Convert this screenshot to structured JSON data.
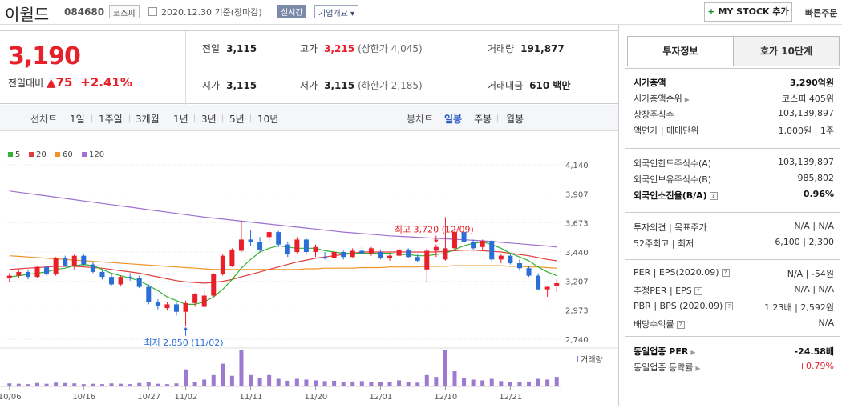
{
  "header": {
    "name": "이월드",
    "code": "084680",
    "market": "코스피",
    "date_text": "2020.12.30 기준(장마감)",
    "realtime": "실시간",
    "overview": "기업개요",
    "mystock": "MY STOCK 추가",
    "quickorder": "빠른주문"
  },
  "price": {
    "current": "3,190",
    "change_label": "전일대비",
    "change_amount": "75",
    "change_percent": "+2.41%",
    "prev_close_label": "전일",
    "prev_close": "3,115",
    "open_label": "시가",
    "open": "3,115",
    "high_label": "고가",
    "high": "3,215",
    "upper_limit": "(상한가 4,045)",
    "low_label": "저가",
    "low": "3,115",
    "lower_limit": "(하한가 2,185)",
    "volume_label": "거래량",
    "volume": "191,877",
    "amount_label": "거래대금",
    "amount": "610 백만"
  },
  "period_bar": {
    "line_label": "선차트",
    "periods": [
      "1일",
      "1주일",
      "3개월",
      "1년",
      "3년",
      "5년",
      "10년"
    ],
    "candle_label": "봉차트",
    "candle_periods": [
      "일봉",
      "주봉",
      "월봉"
    ],
    "active_candle": "일봉"
  },
  "chart_data": {
    "type": "candlestick",
    "ma_legend": [
      {
        "name": "5",
        "color": "#2fb52f"
      },
      {
        "name": "20",
        "color": "#e03c3c"
      },
      {
        "name": "60",
        "color": "#f0942a"
      },
      {
        "name": "120",
        "color": "#a070d0"
      }
    ],
    "y_ticks": [
      "4,140",
      "3,907",
      "3,673",
      "3,440",
      "3,207",
      "2,973",
      "2,740"
    ],
    "ylim": [
      2740,
      4140
    ],
    "x_labels": [
      "10/06",
      "10/16",
      "10/27",
      "11/02",
      "11/11",
      "11/20",
      "12/01",
      "12/10",
      "12/21"
    ],
    "x_label_index": [
      0,
      8,
      15,
      19,
      26,
      33,
      40,
      47,
      54
    ],
    "high_annotation": "최고 3,720 (12/09)",
    "low_annotation": "최저 2,850 (11/02)",
    "high_index": 46,
    "low_index": 19,
    "volume_label": "거래량",
    "candles": [
      [
        3230,
        3270,
        3200,
        3250
      ],
      [
        3250,
        3300,
        3230,
        3280
      ],
      [
        3280,
        3300,
        3220,
        3240
      ],
      [
        3240,
        3330,
        3230,
        3320
      ],
      [
        3320,
        3330,
        3250,
        3260
      ],
      [
        3260,
        3400,
        3250,
        3390
      ],
      [
        3390,
        3410,
        3320,
        3330
      ],
      [
        3330,
        3420,
        3300,
        3410
      ],
      [
        3410,
        3420,
        3330,
        3340
      ],
      [
        3340,
        3360,
        3270,
        3280
      ],
      [
        3280,
        3300,
        3220,
        3240
      ],
      [
        3240,
        3260,
        3170,
        3180
      ],
      [
        3180,
        3250,
        3170,
        3240
      ],
      [
        3240,
        3270,
        3210,
        3230
      ],
      [
        3230,
        3250,
        3150,
        3160
      ],
      [
        3160,
        3180,
        3020,
        3040
      ],
      [
        3040,
        3060,
        2980,
        3010
      ],
      [
        2990,
        3040,
        2970,
        3020
      ],
      [
        3020,
        3040,
        2930,
        2960
      ],
      [
        2960,
        3050,
        2850,
        3030
      ],
      [
        3030,
        3110,
        3000,
        3100
      ],
      [
        3000,
        3130,
        2990,
        3090
      ],
      [
        3090,
        3270,
        3080,
        3260
      ],
      [
        3260,
        3420,
        3250,
        3410
      ],
      [
        3330,
        3470,
        3320,
        3460
      ],
      [
        3450,
        3690,
        3440,
        3540
      ],
      [
        3540,
        3620,
        3490,
        3520
      ],
      [
        3520,
        3560,
        3440,
        3460
      ],
      [
        3560,
        3620,
        3520,
        3600
      ],
      [
        3600,
        3610,
        3480,
        3500
      ],
      [
        3500,
        3520,
        3400,
        3420
      ],
      [
        3440,
        3560,
        3430,
        3540
      ],
      [
        3540,
        3550,
        3430,
        3440
      ],
      [
        3440,
        3500,
        3400,
        3480
      ],
      [
        3400,
        3440,
        3380,
        3390
      ],
      [
        3390,
        3460,
        3380,
        3440
      ],
      [
        3440,
        3450,
        3380,
        3400
      ],
      [
        3400,
        3470,
        3390,
        3450
      ],
      [
        3450,
        3490,
        3420,
        3430
      ],
      [
        3430,
        3480,
        3410,
        3470
      ],
      [
        3440,
        3460,
        3380,
        3390
      ],
      [
        3390,
        3420,
        3370,
        3410
      ],
      [
        3410,
        3480,
        3400,
        3460
      ],
      [
        3460,
        3470,
        3390,
        3400
      ],
      [
        3400,
        3420,
        3360,
        3370
      ],
      [
        3300,
        3470,
        3200,
        3450
      ],
      [
        3450,
        3500,
        3400,
        3480
      ],
      [
        3380,
        3720,
        3370,
        3470
      ],
      [
        3470,
        3610,
        3450,
        3600
      ],
      [
        3600,
        3620,
        3500,
        3520
      ],
      [
        3520,
        3540,
        3460,
        3470
      ],
      [
        3480,
        3540,
        3460,
        3530
      ],
      [
        3530,
        3540,
        3360,
        3380
      ],
      [
        3380,
        3420,
        3350,
        3410
      ],
      [
        3410,
        3420,
        3340,
        3350
      ],
      [
        3350,
        3380,
        3290,
        3310
      ],
      [
        3310,
        3330,
        3240,
        3250
      ],
      [
        3250,
        3270,
        3130,
        3140
      ],
      [
        3140,
        3170,
        3080,
        3160
      ],
      [
        3170,
        3220,
        3120,
        3190
      ]
    ],
    "volumes": [
      8,
      7,
      6,
      9,
      7,
      10,
      9,
      8,
      6,
      7,
      6,
      8,
      7,
      6,
      9,
      11,
      7,
      6,
      8,
      45,
      12,
      18,
      30,
      60,
      28,
      95,
      30,
      22,
      30,
      20,
      15,
      20,
      18,
      16,
      14,
      15,
      12,
      13,
      14,
      12,
      11,
      12,
      16,
      12,
      10,
      30,
      25,
      95,
      40,
      22,
      18,
      16,
      20,
      14,
      12,
      12,
      13,
      20,
      18,
      25
    ],
    "ma5": [
      3240,
      3250,
      3260,
      3270,
      3280,
      3300,
      3310,
      3330,
      3340,
      3330,
      3300,
      3270,
      3250,
      3230,
      3210,
      3170,
      3130,
      3080,
      3050,
      3020,
      3020,
      3040,
      3080,
      3140,
      3220,
      3310,
      3380,
      3440,
      3470,
      3490,
      3480,
      3470,
      3470,
      3470,
      3450,
      3440,
      3430,
      3430,
      3430,
      3430,
      3430,
      3430,
      3420,
      3420,
      3410,
      3410,
      3420,
      3430,
      3460,
      3490,
      3510,
      3520,
      3500,
      3470,
      3430,
      3400,
      3370,
      3320,
      3280,
      3250
    ],
    "ma20": [
      3300,
      3305,
      3310,
      3315,
      3320,
      3325,
      3325,
      3325,
      3320,
      3315,
      3310,
      3300,
      3290,
      3280,
      3270,
      3255,
      3240,
      3225,
      3210,
      3200,
      3195,
      3190,
      3195,
      3205,
      3220,
      3240,
      3260,
      3280,
      3300,
      3320,
      3340,
      3360,
      3375,
      3390,
      3400,
      3410,
      3420,
      3430,
      3440,
      3440,
      3440,
      3440,
      3440,
      3440,
      3440,
      3440,
      3440,
      3445,
      3450,
      3455,
      3455,
      3450,
      3445,
      3440,
      3430,
      3420,
      3410,
      3395,
      3380,
      3370
    ],
    "ma60": [
      3410,
      3405,
      3400,
      3395,
      3390,
      3385,
      3380,
      3375,
      3370,
      3365,
      3360,
      3355,
      3350,
      3345,
      3340,
      3335,
      3330,
      3325,
      3320,
      3315,
      3310,
      3305,
      3300,
      3300,
      3300,
      3300,
      3300,
      3300,
      3300,
      3300,
      3300,
      3300,
      3305,
      3305,
      3310,
      3310,
      3310,
      3310,
      3315,
      3315,
      3315,
      3320,
      3320,
      3320,
      3320,
      3325,
      3325,
      3325,
      3330,
      3330,
      3330,
      3330,
      3330,
      3330,
      3325,
      3325,
      3320,
      3320,
      3315,
      3310
    ],
    "ma120": [
      3930,
      3920,
      3910,
      3900,
      3890,
      3880,
      3870,
      3860,
      3850,
      3840,
      3830,
      3820,
      3810,
      3800,
      3790,
      3780,
      3770,
      3760,
      3750,
      3740,
      3730,
      3720,
      3712,
      3704,
      3696,
      3688,
      3680,
      3672,
      3664,
      3656,
      3648,
      3640,
      3632,
      3624,
      3616,
      3608,
      3600,
      3594,
      3588,
      3582,
      3576,
      3570,
      3566,
      3562,
      3558,
      3554,
      3550,
      3546,
      3542,
      3538,
      3534,
      3530,
      3524,
      3518,
      3512,
      3506,
      3500,
      3494,
      3488,
      3480
    ]
  },
  "right_panel": {
    "tab_invest": "투자정보",
    "tab_quote": "호가 10단계",
    "rows1": [
      {
        "label": "시가총액",
        "value": "3,290억원",
        "bold": true
      },
      {
        "label": "시가총액순위",
        "value": "코스피 405위",
        "arrow": true
      },
      {
        "label": "상장주식수",
        "value": "103,139,897"
      },
      {
        "label": "액면가 | 매매단위",
        "value": "1,000원 | 1주"
      }
    ],
    "rows2": [
      {
        "label": "외국인한도주식수(A)",
        "value": "103,139,897"
      },
      {
        "label": "외국인보유주식수(B)",
        "value": "985,802"
      },
      {
        "label": "외국인소진율(B/A)",
        "value": "0.96%",
        "bold": true,
        "help": true
      }
    ],
    "rows3": [
      {
        "label": "투자의견 | 목표주가",
        "value": "N/A | N/A"
      },
      {
        "label": "52주최고 | 최저",
        "value": "6,100 | 2,300"
      }
    ],
    "rows4": [
      {
        "label": "PER | EPS(2020.09)",
        "value": "N/A | -54원",
        "help": true
      },
      {
        "label": "추정PER | EPS",
        "value": "N/A | N/A",
        "help": true
      },
      {
        "label": "PBR | BPS (2020.09)",
        "value": "1.23배 | 2,592원",
        "help": true
      },
      {
        "label": "배당수익률",
        "value": "N/A",
        "help": true
      }
    ],
    "rows5": [
      {
        "label": "동일업종 PER",
        "value": "-24.58배",
        "bold": true,
        "arrow": true
      },
      {
        "label": "동일업종 등락률",
        "value": "+0.79%",
        "red": true,
        "arrow": true
      }
    ]
  }
}
